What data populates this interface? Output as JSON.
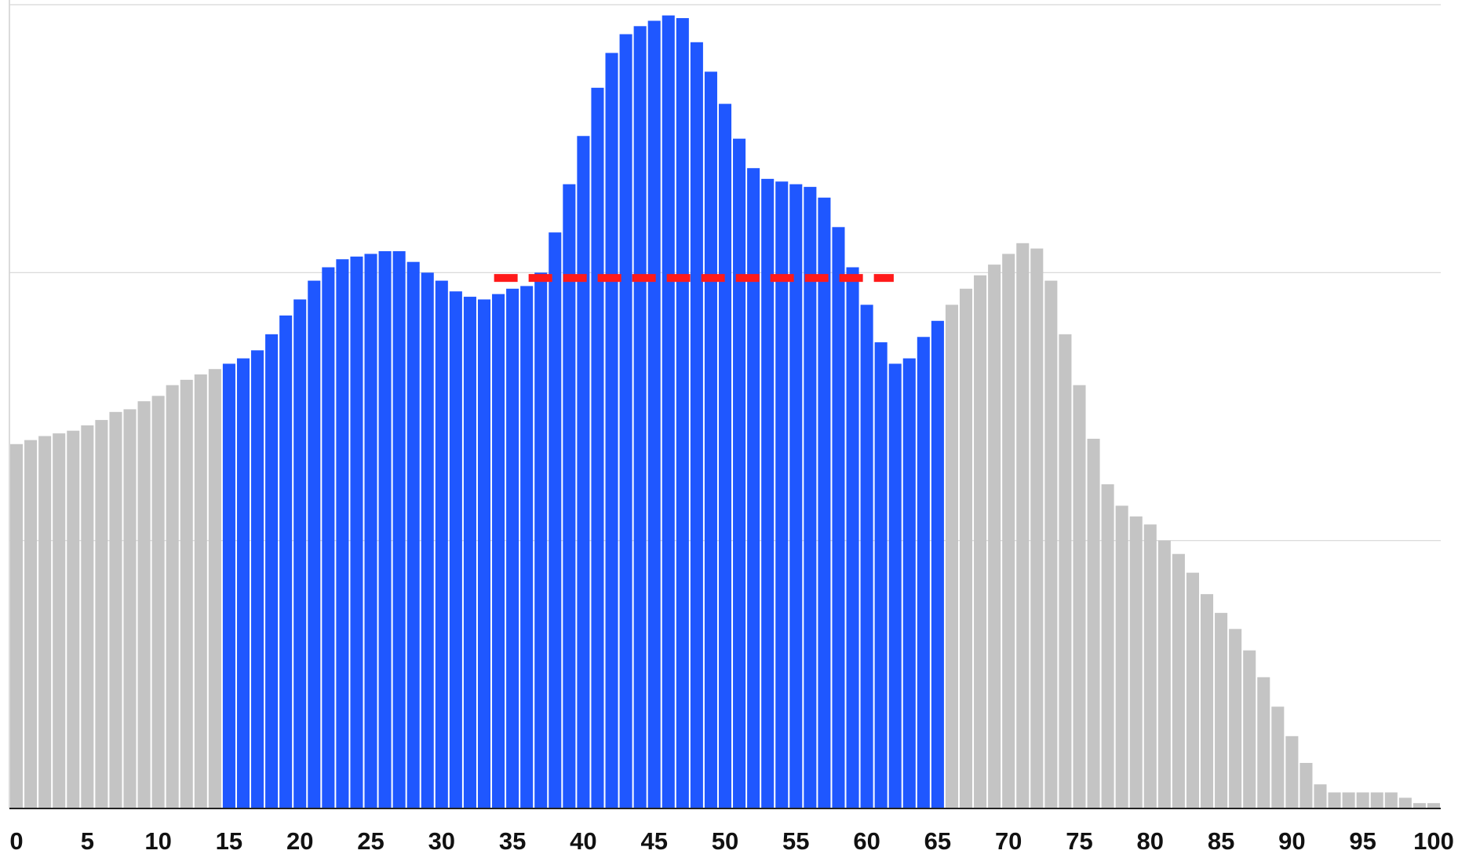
{
  "chart_data": {
    "type": "bar",
    "categories": [
      0,
      null,
      null,
      null,
      null,
      5,
      null,
      null,
      null,
      null,
      10,
      null,
      null,
      null,
      null,
      15,
      null,
      null,
      null,
      null,
      20,
      null,
      null,
      null,
      null,
      25,
      null,
      null,
      null,
      null,
      30,
      null,
      null,
      null,
      null,
      35,
      null,
      null,
      null,
      null,
      40,
      null,
      null,
      null,
      null,
      45,
      null,
      null,
      null,
      null,
      50,
      null,
      null,
      null,
      null,
      55,
      null,
      null,
      null,
      null,
      60,
      null,
      null,
      null,
      null,
      65,
      null,
      null,
      null,
      null,
      70,
      null,
      null,
      null,
      null,
      75,
      null,
      null,
      null,
      null,
      80,
      null,
      null,
      null,
      null,
      85,
      null,
      null,
      null,
      null,
      90,
      null,
      null,
      null,
      null,
      95,
      null,
      null,
      null,
      null,
      100
    ],
    "values": [
      1.36,
      1.375,
      1.39,
      1.4,
      1.41,
      1.43,
      1.45,
      1.48,
      1.49,
      1.52,
      1.54,
      1.58,
      1.6,
      1.62,
      1.64,
      1.66,
      1.68,
      1.71,
      1.77,
      1.84,
      1.9,
      1.97,
      2.02,
      2.05,
      2.06,
      2.07,
      2.08,
      2.08,
      2.04,
      2.0,
      1.97,
      1.93,
      1.91,
      1.9,
      1.92,
      1.94,
      1.95,
      2.0,
      2.15,
      2.33,
      2.51,
      2.69,
      2.82,
      2.89,
      2.92,
      2.94,
      2.96,
      2.95,
      2.86,
      2.75,
      2.63,
      2.5,
      2.39,
      2.35,
      2.34,
      2.33,
      2.32,
      2.28,
      2.17,
      2.02,
      1.88,
      1.74,
      1.66,
      1.68,
      1.76,
      1.82,
      1.88,
      1.94,
      1.99,
      2.03,
      2.07,
      2.11,
      2.09,
      1.97,
      1.77,
      1.58,
      1.38,
      1.21,
      1.13,
      1.09,
      1.06,
      1.0,
      0.95,
      0.88,
      0.8,
      0.73,
      0.67,
      0.59,
      0.49,
      0.38,
      0.27,
      0.17,
      0.09,
      0.06,
      0.06,
      0.06,
      0.06,
      0.06,
      0.04,
      0.02,
      0.02
    ],
    "color": "#c4c4c4",
    "highlight_color": "#1f57ff",
    "highlight_range": [
      15,
      65
    ],
    "ylim": [
      0,
      3
    ],
    "gridlines": [
      1,
      2,
      3
    ],
    "grid": true,
    "reference_line": {
      "value": 1.98,
      "from": 33.7,
      "to": 61.9,
      "color": "#ff1a1a"
    }
  }
}
